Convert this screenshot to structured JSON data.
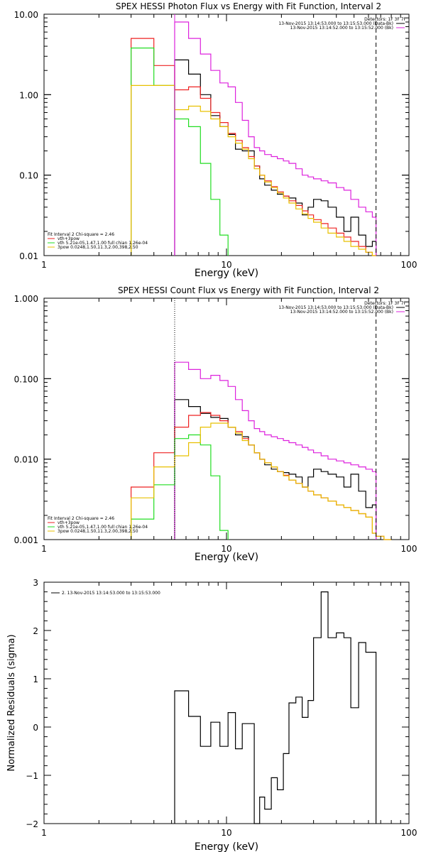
{
  "colors": {
    "black": "#000000",
    "red": "#ee2222",
    "green": "#22dd22",
    "yellow": "#e8c000",
    "magenta": "#dd22dd"
  },
  "chart_data": [
    {
      "type": "line",
      "title": "SPEX HESSI Photon Flux vs Energy with Fit Function, Interval 2",
      "xlabel": "Energy (keV)",
      "ylabel": "",
      "xscale": "log",
      "yscale": "log",
      "xlim": [
        1,
        100
      ],
      "ylim": [
        0.01,
        10
      ],
      "xticks": [
        "1",
        "10",
        "100"
      ],
      "yticks": [
        "10.00",
        "1.00",
        "0.10",
        "0.01"
      ],
      "ytick_values": [
        10,
        1,
        0.1,
        0.01
      ],
      "vlines": [
        {
          "x": 5.2,
          "style": "solid",
          "color": "magenta"
        },
        {
          "x": 66,
          "style": "dashed",
          "color": "black"
        }
      ],
      "legend_top": {
        "header": "Detectors: 1F 3F 7F",
        "items": [
          {
            "label": "13-Nov-2015 13:14:53.000 to 13:15:53.000 (Data-Bk)",
            "color": "black"
          },
          {
            "label": "13-Nov-2015 13:14:52.000 to 13:15:52.000 (Bk)",
            "color": "magenta"
          }
        ]
      },
      "legend_bottom": {
        "header": "Fit Interval 2   Chi-square = 2.46",
        "items": [
          {
            "label": "vth+3pow",
            "color": "red"
          },
          {
            "label": "vth 5.21e-05,1.47,1.00  full chian 1.26e-04",
            "color": "green"
          },
          {
            "label": "3pow 0.0248,1.50,11.3,2.00,398,2.50",
            "color": "yellow"
          }
        ]
      },
      "series": [
        {
          "name": "Data-Bk",
          "color": "black",
          "edges": [
            5.2,
            6.2,
            7.2,
            8.2,
            9.2,
            10.2,
            11.2,
            12.2,
            13.2,
            14.2,
            15.2,
            16.2,
            17.6,
            19,
            20.5,
            22,
            24,
            26,
            28,
            30,
            33,
            36,
            40,
            44,
            48,
            53,
            58,
            63,
            66
          ],
          "values": [
            2.7,
            1.8,
            1.0,
            0.55,
            0.4,
            0.32,
            0.21,
            0.2,
            0.2,
            0.13,
            0.09,
            0.075,
            0.065,
            0.058,
            0.055,
            0.052,
            0.045,
            0.032,
            0.04,
            0.05,
            0.048,
            0.04,
            0.03,
            0.02,
            0.03,
            0.018,
            0.013,
            0.015
          ]
        },
        {
          "name": "Bk",
          "color": "magenta",
          "edges": [
            5.2,
            6.2,
            7.2,
            8.2,
            9.2,
            10.2,
            11.2,
            12.2,
            13.2,
            14.2,
            15.2,
            16.2,
            17.6,
            19,
            20.5,
            22,
            24,
            26,
            28,
            30,
            33,
            36,
            40,
            44,
            48,
            53,
            58,
            63,
            66
          ],
          "values": [
            8.0,
            5.0,
            3.2,
            2.0,
            1.4,
            1.25,
            0.8,
            0.48,
            0.3,
            0.22,
            0.2,
            0.18,
            0.17,
            0.16,
            0.15,
            0.14,
            0.12,
            0.1,
            0.095,
            0.09,
            0.085,
            0.08,
            0.07,
            0.065,
            0.05,
            0.04,
            0.035,
            0.03
          ]
        },
        {
          "name": "vth+3pow",
          "color": "red",
          "edges": [
            3,
            4,
            5.2,
            6.2,
            7.2,
            8.2,
            9.2,
            10.2,
            11.2,
            12.2,
            13.2,
            14.2,
            15.2,
            16.2,
            17.6,
            19,
            20.5,
            22,
            24,
            26,
            28,
            30,
            33,
            36,
            40,
            44,
            48,
            53,
            58,
            63,
            66
          ],
          "values": [
            5.0,
            2.3,
            1.15,
            1.25,
            0.9,
            0.6,
            0.45,
            0.33,
            0.27,
            0.22,
            0.17,
            0.13,
            0.1,
            0.085,
            0.072,
            0.062,
            0.055,
            0.048,
            0.042,
            0.036,
            0.032,
            0.028,
            0.025,
            0.022,
            0.019,
            0.017,
            0.015,
            0.013,
            0.011,
            0.01
          ]
        },
        {
          "name": "vth",
          "color": "green",
          "edges": [
            3,
            4,
            5.2,
            6.2,
            7.2,
            8.2,
            9.2,
            10.2
          ],
          "values": [
            3.8,
            1.3,
            0.5,
            0.4,
            0.14,
            0.05,
            0.018
          ]
        },
        {
          "name": "3pow",
          "color": "yellow",
          "edges": [
            3,
            4,
            5.2,
            6.2,
            7.2,
            8.2,
            9.2,
            10.2,
            11.2,
            12.2,
            13.2,
            14.2,
            15.2,
            16.2,
            17.6,
            19,
            20.5,
            22,
            24,
            26,
            28,
            30,
            33,
            36,
            40,
            44,
            48,
            53,
            58,
            63,
            66
          ],
          "values": [
            1.3,
            1.3,
            0.65,
            0.72,
            0.62,
            0.5,
            0.4,
            0.3,
            0.25,
            0.21,
            0.16,
            0.12,
            0.1,
            0.082,
            0.07,
            0.06,
            0.052,
            0.045,
            0.038,
            0.033,
            0.029,
            0.026,
            0.022,
            0.019,
            0.017,
            0.015,
            0.013,
            0.012,
            0.011,
            0.01
          ]
        }
      ]
    },
    {
      "type": "line",
      "title": "SPEX HESSI Count Flux vs Energy with Fit Function, Interval 2",
      "xlabel": "Energy (keV)",
      "ylabel": "",
      "xscale": "log",
      "yscale": "log",
      "xlim": [
        1,
        100
      ],
      "ylim": [
        0.001,
        1
      ],
      "xticks": [
        "1",
        "10",
        "100"
      ],
      "yticks": [
        "1.000",
        "0.100",
        "0.010",
        "0.001"
      ],
      "ytick_values": [
        1,
        0.1,
        0.01,
        0.001
      ],
      "vlines": [
        {
          "x": 5.2,
          "style": "dotted",
          "color": "black"
        },
        {
          "x": 66,
          "style": "dashed",
          "color": "black"
        }
      ],
      "legend_top": {
        "header": "Detectors: 1F 3F 7F",
        "items": [
          {
            "label": "13-Nov-2015 13:14:53.000 to 13:15:53.000 (Data-Bk)",
            "color": "black"
          },
          {
            "label": "13-Nov-2015 13:14:52.000 to 13:15:52.000 (Bk)",
            "color": "magenta"
          }
        ]
      },
      "legend_bottom": {
        "header": "Fit Interval 2   Chi-square = 2.46",
        "items": [
          {
            "label": "vth+3pow",
            "color": "red"
          },
          {
            "label": "vth 5.21e-05,1.47,1.00  full chian 1.26e-04",
            "color": "green"
          },
          {
            "label": "3pow 0.0248,1.50,11.3,2.00,398,2.50",
            "color": "yellow"
          }
        ]
      },
      "series": [
        {
          "name": "Data-Bk",
          "color": "black",
          "edges": [
            5.2,
            6.2,
            7.2,
            8.2,
            9.2,
            10.2,
            11.2,
            12.2,
            13.2,
            14.2,
            15.2,
            16.2,
            17.6,
            19,
            20.5,
            22,
            24,
            26,
            28,
            30,
            33,
            36,
            40,
            44,
            48,
            53,
            58,
            63,
            66
          ],
          "values": [
            0.055,
            0.045,
            0.037,
            0.033,
            0.032,
            0.025,
            0.02,
            0.019,
            0.015,
            0.012,
            0.01,
            0.0085,
            0.0075,
            0.007,
            0.0068,
            0.0065,
            0.006,
            0.0045,
            0.006,
            0.0075,
            0.007,
            0.0065,
            0.006,
            0.0045,
            0.0065,
            0.004,
            0.0025,
            0.0027
          ]
        },
        {
          "name": "Bk",
          "color": "magenta",
          "edges": [
            5.2,
            6.2,
            7.2,
            8.2,
            9.2,
            10.2,
            11.2,
            12.2,
            13.2,
            14.2,
            15.2,
            16.2,
            17.6,
            19,
            20.5,
            22,
            24,
            26,
            28,
            30,
            33,
            36,
            40,
            44,
            48,
            53,
            58,
            63,
            66
          ],
          "values": [
            0.16,
            0.13,
            0.1,
            0.11,
            0.095,
            0.08,
            0.055,
            0.04,
            0.03,
            0.024,
            0.022,
            0.02,
            0.019,
            0.018,
            0.017,
            0.016,
            0.015,
            0.014,
            0.013,
            0.012,
            0.011,
            0.01,
            0.0095,
            0.009,
            0.0085,
            0.008,
            0.0075,
            0.007
          ]
        },
        {
          "name": "vth+3pow",
          "color": "red",
          "edges": [
            3,
            4,
            5.2,
            6.2,
            7.2,
            8.2,
            9.2,
            10.2,
            11.2,
            12.2,
            13.2,
            14.2,
            15.2,
            16.2,
            17.6,
            19,
            20.5,
            22,
            24,
            26,
            28,
            30,
            33,
            36,
            40,
            44,
            48,
            53,
            58,
            63,
            66,
            73,
            80
          ],
          "values": [
            0.0045,
            0.012,
            0.025,
            0.035,
            0.038,
            0.035,
            0.03,
            0.025,
            0.022,
            0.018,
            0.015,
            0.012,
            0.01,
            0.009,
            0.008,
            0.007,
            0.0063,
            0.0055,
            0.005,
            0.0045,
            0.004,
            0.0036,
            0.0033,
            0.003,
            0.0027,
            0.0025,
            0.0023,
            0.0021,
            0.0019,
            0.0012,
            0.0011,
            0.001
          ]
        },
        {
          "name": "vth",
          "color": "green",
          "edges": [
            3,
            4,
            5.2,
            6.2,
            7.2,
            8.2,
            9.2,
            10.2
          ],
          "values": [
            0.0018,
            0.0048,
            0.018,
            0.02,
            0.015,
            0.0062,
            0.0013
          ]
        },
        {
          "name": "3pow",
          "color": "yellow",
          "edges": [
            3,
            4,
            5.2,
            6.2,
            7.2,
            8.2,
            9.2,
            10.2,
            11.2,
            12.2,
            13.2,
            14.2,
            15.2,
            16.2,
            17.6,
            19,
            20.5,
            22,
            24,
            26,
            28,
            30,
            33,
            36,
            40,
            44,
            48,
            53,
            58,
            63,
            66,
            73,
            80
          ],
          "values": [
            0.0033,
            0.008,
            0.011,
            0.016,
            0.025,
            0.028,
            0.028,
            0.025,
            0.021,
            0.017,
            0.015,
            0.012,
            0.01,
            0.009,
            0.008,
            0.007,
            0.0062,
            0.0055,
            0.005,
            0.0045,
            0.004,
            0.0036,
            0.0033,
            0.003,
            0.0027,
            0.0025,
            0.0023,
            0.0021,
            0.0019,
            0.0012,
            0.0011,
            0.001
          ]
        }
      ]
    },
    {
      "type": "line",
      "title": "",
      "xlabel": "Energy (keV)",
      "ylabel": "Normalized Residuals (sigma)",
      "xscale": "log",
      "yscale": "linear",
      "xlim": [
        1,
        100
      ],
      "ylim": [
        -2,
        3
      ],
      "xticks": [
        "1",
        "10",
        "100"
      ],
      "yticks": [
        "3",
        "2",
        "1",
        "0",
        "−1",
        "−2"
      ],
      "ytick_values": [
        3,
        2,
        1,
        0,
        -1,
        -2
      ],
      "legend": {
        "items": [
          {
            "label": "2. 13-Nov-2015 13:14:53.000 to 13:15:53.000",
            "color": "black"
          }
        ]
      },
      "series": [
        {
          "name": "2. 13-Nov-2015 13:14:53.000 to 13:15:53.000",
          "color": "black",
          "edges": [
            5.2,
            6.2,
            7.2,
            8.2,
            9.2,
            10.2,
            11.2,
            12.2,
            13.2,
            14.2,
            15.2,
            16.2,
            17.6,
            19,
            20.5,
            22,
            24,
            26,
            28,
            30,
            33,
            36,
            40,
            44,
            48,
            53,
            58,
            63,
            66
          ],
          "values": [
            0.75,
            0.22,
            -0.4,
            0.1,
            -0.4,
            0.3,
            -0.45,
            0.07,
            0.07,
            -2.0,
            -1.45,
            -1.7,
            -1.05,
            -1.3,
            -0.55,
            0.5,
            0.62,
            0.2,
            0.55,
            1.85,
            2.8,
            1.85,
            1.95,
            1.85,
            0.4,
            1.75,
            1.55,
            1.55
          ]
        }
      ]
    }
  ]
}
